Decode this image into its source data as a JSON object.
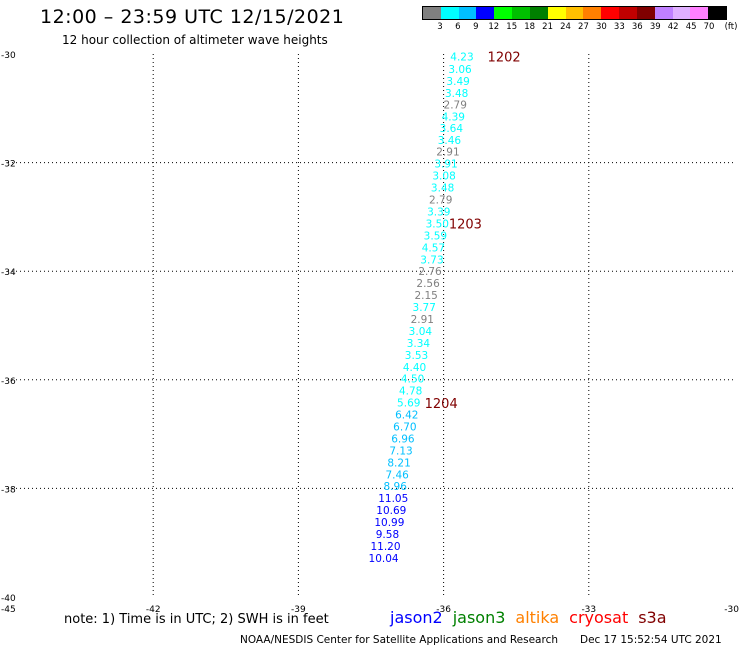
{
  "header": {
    "title": "12:00 – 23:59 UTC 12/15/2021",
    "subtitle": "12 hour collection of altimeter wave heights"
  },
  "legend": {
    "colors": [
      "#808080",
      "#00ffff",
      "#00bfff",
      "#0000ff",
      "#00ff00",
      "#00c000",
      "#008000",
      "#ffff00",
      "#ffc000",
      "#ff8000",
      "#ff0000",
      "#c00000",
      "#800000",
      "#c080ff",
      "#e0b0ff",
      "#ff80ff",
      "#000000"
    ],
    "labels": [
      "3",
      "6",
      "9",
      "12",
      "15",
      "18",
      "21",
      "24",
      "27",
      "30",
      "33",
      "36",
      "39",
      "42",
      "45",
      "70",
      "(ft)"
    ]
  },
  "axes": {
    "lon_ticks": [
      "-45",
      "-42",
      "-39",
      "-36",
      "-33",
      "-30"
    ],
    "lat_ticks": [
      "-30",
      "-32",
      "-34",
      "-36",
      "-38",
      "-40"
    ]
  },
  "track": {
    "points": [
      {
        "lon": -35.62,
        "lat": -30.05,
        "v": "4.23",
        "c": "#00ffff"
      },
      {
        "lon": -35.66,
        "lat": -30.28,
        "v": "3.06",
        "c": "#00ffff"
      },
      {
        "lon": -35.7,
        "lat": -30.5,
        "v": "3.49",
        "c": "#00ffff"
      },
      {
        "lon": -35.73,
        "lat": -30.72,
        "v": "3.48",
        "c": "#00ffff"
      },
      {
        "lon": -35.76,
        "lat": -30.93,
        "v": "2.79",
        "c": "#808080"
      },
      {
        "lon": -35.8,
        "lat": -31.15,
        "v": "4.39",
        "c": "#00ffff"
      },
      {
        "lon": -35.84,
        "lat": -31.36,
        "v": "3.64",
        "c": "#00ffff"
      },
      {
        "lon": -35.88,
        "lat": -31.58,
        "v": "3.46",
        "c": "#00ffff"
      },
      {
        "lon": -35.91,
        "lat": -31.8,
        "v": "2.91",
        "c": "#808080"
      },
      {
        "lon": -35.95,
        "lat": -32.02,
        "v": "3.91",
        "c": "#00ffff"
      },
      {
        "lon": -35.99,
        "lat": -32.24,
        "v": "3.08",
        "c": "#00ffff"
      },
      {
        "lon": -36.02,
        "lat": -32.46,
        "v": "3.48",
        "c": "#00ffff"
      },
      {
        "lon": -36.06,
        "lat": -32.68,
        "v": "2.79",
        "c": "#808080"
      },
      {
        "lon": -36.1,
        "lat": -32.9,
        "v": "3.39",
        "c": "#00ffff"
      },
      {
        "lon": -36.13,
        "lat": -33.12,
        "v": "3.50",
        "c": "#00ffff"
      },
      {
        "lon": -36.17,
        "lat": -33.34,
        "v": "3.59",
        "c": "#00ffff"
      },
      {
        "lon": -36.21,
        "lat": -33.56,
        "v": "4.57",
        "c": "#00ffff"
      },
      {
        "lon": -36.24,
        "lat": -33.78,
        "v": "3.73",
        "c": "#00ffff"
      },
      {
        "lon": -36.28,
        "lat": -34.0,
        "v": "2.76",
        "c": "#808080"
      },
      {
        "lon": -36.32,
        "lat": -34.22,
        "v": "2.56",
        "c": "#808080"
      },
      {
        "lon": -36.36,
        "lat": -34.44,
        "v": "2.15",
        "c": "#808080"
      },
      {
        "lon": -36.4,
        "lat": -34.66,
        "v": "3.77",
        "c": "#00ffff"
      },
      {
        "lon": -36.44,
        "lat": -34.88,
        "v": "2.91",
        "c": "#808080"
      },
      {
        "lon": -36.48,
        "lat": -35.1,
        "v": "3.04",
        "c": "#00ffff"
      },
      {
        "lon": -36.52,
        "lat": -35.32,
        "v": "3.34",
        "c": "#00ffff"
      },
      {
        "lon": -36.56,
        "lat": -35.54,
        "v": "3.53",
        "c": "#00ffff"
      },
      {
        "lon": -36.6,
        "lat": -35.76,
        "v": "4.40",
        "c": "#00ffff"
      },
      {
        "lon": -36.64,
        "lat": -35.98,
        "v": "4.50",
        "c": "#00ffff"
      },
      {
        "lon": -36.68,
        "lat": -36.2,
        "v": "4.78",
        "c": "#00ffff"
      },
      {
        "lon": -36.72,
        "lat": -36.42,
        "v": "5.69",
        "c": "#00ffff"
      },
      {
        "lon": -36.76,
        "lat": -36.64,
        "v": "6.42",
        "c": "#00bfff"
      },
      {
        "lon": -36.8,
        "lat": -36.86,
        "v": "6.70",
        "c": "#00bfff"
      },
      {
        "lon": -36.84,
        "lat": -37.08,
        "v": "6.96",
        "c": "#00bfff"
      },
      {
        "lon": -36.88,
        "lat": -37.3,
        "v": "7.13",
        "c": "#00bfff"
      },
      {
        "lon": -36.92,
        "lat": -37.52,
        "v": "8.21",
        "c": "#00bfff"
      },
      {
        "lon": -36.96,
        "lat": -37.74,
        "v": "7.46",
        "c": "#00bfff"
      },
      {
        "lon": -37.0,
        "lat": -37.96,
        "v": "8.96",
        "c": "#00bfff"
      },
      {
        "lon": -37.04,
        "lat": -38.18,
        "v": "11.05",
        "c": "#0000ff"
      },
      {
        "lon": -37.08,
        "lat": -38.4,
        "v": "10.69",
        "c": "#0000ff"
      },
      {
        "lon": -37.12,
        "lat": -38.62,
        "v": "10.99",
        "c": "#0000ff"
      },
      {
        "lon": -37.16,
        "lat": -38.84,
        "v": "9.58",
        "c": "#0000ff"
      },
      {
        "lon": -37.2,
        "lat": -39.06,
        "v": "11.20",
        "c": "#0000ff"
      },
      {
        "lon": -37.24,
        "lat": -39.28,
        "v": "10.04",
        "c": "#0000ff"
      }
    ],
    "times": [
      {
        "lon": -34.75,
        "lat": -30.05,
        "t": "1202"
      },
      {
        "lon": -35.55,
        "lat": -33.12,
        "t": "1203"
      },
      {
        "lon": -36.05,
        "lat": -36.43,
        "t": "1204"
      }
    ],
    "time_color": "#800000"
  },
  "footer": {
    "note": "note:  1) Time is in UTC;  2) SWH is in feet",
    "sats": [
      {
        "name": "jason2",
        "color": "#0000ff"
      },
      {
        "name": "jason3",
        "color": "#008000"
      },
      {
        "name": "altika",
        "color": "#ff8000"
      },
      {
        "name": "cryosat",
        "color": "#ff0000"
      },
      {
        "name": "s3a",
        "color": "#800000"
      }
    ],
    "credit": "NOAA/NESDIS Center for Satellite Applications and Research",
    "stamp": "Dec 17 15:52:54 UTC 2021"
  }
}
